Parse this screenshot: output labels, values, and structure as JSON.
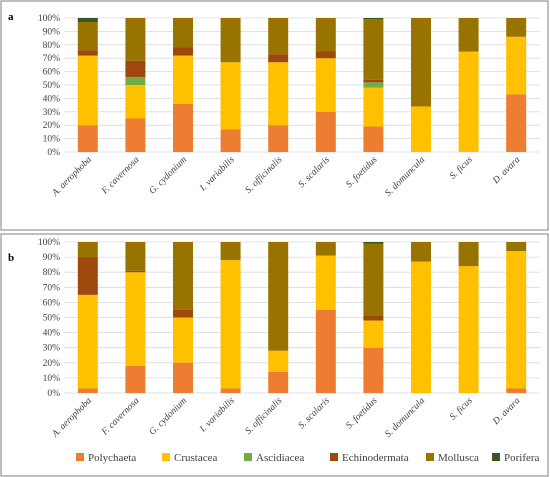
{
  "chart_data": [
    {
      "type": "bar",
      "stacked": true,
      "panel_label": "a",
      "title": "",
      "xlabel": "",
      "ylabel": "",
      "ylim": [
        0,
        100
      ],
      "yticks": [
        "0%",
        "10%",
        "20%",
        "30%",
        "40%",
        "50%",
        "60%",
        "70%",
        "80%",
        "90%",
        "100%"
      ],
      "grid": true,
      "categories": [
        "A. aerophoba",
        "F. cavernosa",
        "G. cydonium",
        "I. variabilis",
        "S. officinalis",
        "S. scalaris",
        "S. foetidus",
        "S. domuncula",
        "S. ficus",
        "D. avara"
      ],
      "series": [
        {
          "name": "Polychaeta",
          "values": [
            20,
            25,
            36,
            17,
            20,
            30,
            19,
            0,
            0,
            43
          ]
        },
        {
          "name": "Crustacea",
          "values": [
            52,
            25,
            36,
            50,
            47,
            40,
            29,
            34,
            75,
            43
          ]
        },
        {
          "name": "Ascidiacea",
          "values": [
            0,
            6,
            0,
            0,
            0,
            0,
            4,
            0,
            0,
            0
          ]
        },
        {
          "name": "Echinodermata",
          "values": [
            4,
            12,
            6,
            0,
            6,
            5,
            2,
            0,
            0,
            0
          ]
        },
        {
          "name": "Mollusca",
          "values": [
            21,
            32,
            22,
            33,
            27,
            25,
            45,
            66,
            25,
            14
          ]
        },
        {
          "name": "Porifera",
          "values": [
            3,
            0,
            0,
            0,
            0,
            0,
            1,
            0,
            0,
            0
          ]
        }
      ]
    },
    {
      "type": "bar",
      "stacked": true,
      "panel_label": "b",
      "title": "",
      "xlabel": "",
      "ylabel": "",
      "ylim": [
        0,
        100
      ],
      "yticks": [
        "0%",
        "10%",
        "20%",
        "30%",
        "40%",
        "50%",
        "60%",
        "70%",
        "80%",
        "90%",
        "100%"
      ],
      "grid": true,
      "categories": [
        "A. aerophoba",
        "F. cavernosa",
        "G. cydonium",
        "I. variabilis",
        "S. officinalis",
        "S. scalaris",
        "S. foetidus",
        "S. domuncula",
        "S. ficus",
        "D. avara"
      ],
      "series": [
        {
          "name": "Polychaeta",
          "values": [
            3,
            18,
            20,
            3,
            14,
            55,
            30,
            0,
            0,
            3
          ]
        },
        {
          "name": "Crustacea",
          "values": [
            62,
            62,
            30,
            85,
            14,
            36,
            18,
            87,
            84,
            91
          ]
        },
        {
          "name": "Ascidiacea",
          "values": [
            0,
            0,
            0,
            0,
            0,
            0,
            0,
            0,
            0,
            0
          ]
        },
        {
          "name": "Echinodermata",
          "values": [
            25,
            1,
            5,
            0,
            0,
            0,
            3,
            0,
            0,
            0
          ]
        },
        {
          "name": "Mollusca",
          "values": [
            10,
            19,
            45,
            12,
            72,
            9,
            48,
            13,
            16,
            6
          ]
        },
        {
          "name": "Porifera",
          "values": [
            0,
            0,
            0,
            0,
            0,
            0,
            1,
            0,
            0,
            0
          ]
        }
      ]
    }
  ],
  "legend": {
    "placement": "bottom",
    "items": [
      {
        "name": "Polychaeta",
        "color": "#ed7d31"
      },
      {
        "name": "Crustacea",
        "color": "#ffc000"
      },
      {
        "name": "Ascidiacea",
        "color": "#70ad47"
      },
      {
        "name": "Echinodermata",
        "color": "#9e480e"
      },
      {
        "name": "Mollusca",
        "color": "#997300"
      },
      {
        "name": "Porifera",
        "color": "#375623"
      }
    ]
  }
}
